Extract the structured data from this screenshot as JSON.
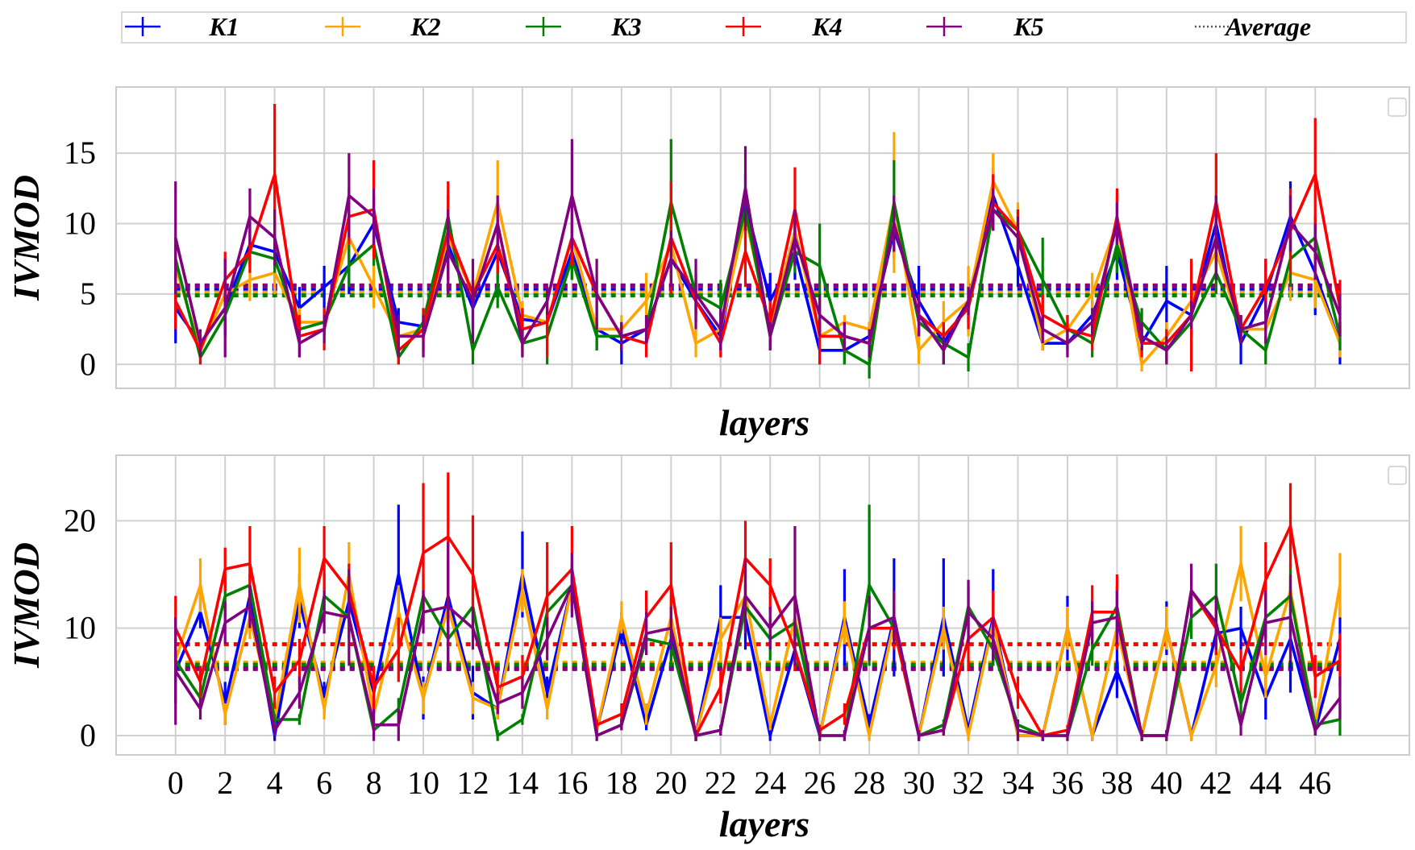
{
  "legend": {
    "items": [
      {
        "label": "K1",
        "color": "#0000ff",
        "style": "errorbar"
      },
      {
        "label": "K2",
        "color": "#ffa500",
        "style": "errorbar"
      },
      {
        "label": "K3",
        "color": "#008000",
        "style": "errorbar"
      },
      {
        "label": "K4",
        "color": "#ff0000",
        "style": "errorbar"
      },
      {
        "label": "K5",
        "color": "#800080",
        "style": "errorbar"
      },
      {
        "label": "Average",
        "color": "#555555",
        "style": "dotted"
      }
    ]
  },
  "chart_data": [
    {
      "type": "line",
      "panel": "top",
      "xlabel": "layers",
      "ylabel": "IVMOD",
      "ylim": [
        -1.7,
        19.7
      ],
      "yticks": [
        0,
        5,
        10,
        15
      ],
      "xlim": [
        -2.4,
        49.8
      ],
      "xticks": [
        0,
        2,
        4,
        6,
        8,
        10,
        12,
        14,
        16,
        18,
        20,
        22,
        24,
        26,
        28,
        30,
        32,
        34,
        36,
        38,
        40,
        42,
        44,
        46
      ],
      "show_xtick_labels": false,
      "grid": true,
      "series": [
        {
          "name": "K1",
          "color": "#0000ff",
          "average": 5.3,
          "values": [
            4,
            1.5,
            4,
            8.5,
            8,
            4,
            5.5,
            7,
            10,
            3,
            2.7,
            8.5,
            4,
            8,
            3.2,
            3,
            8,
            2.5,
            1.5,
            2.5,
            7.5,
            4.5,
            2,
            11.5,
            4.5,
            8,
            1,
            1,
            2,
            9.5,
            4.5,
            1.5,
            4.5,
            12,
            7,
            1.5,
            1.5,
            3.5,
            8,
            1.5,
            4.5,
            3.5,
            10,
            1.5,
            5,
            10.5,
            6.5,
            1.5
          ],
          "errors": [
            2.5,
            0.5,
            2,
            1.5,
            2,
            1.5,
            1.5,
            2,
            2,
            1,
            0.8,
            2.5,
            1.5,
            2,
            1,
            1,
            2,
            1.5,
            1.5,
            1,
            2,
            1.5,
            1,
            2,
            2,
            2,
            1,
            1,
            1,
            2,
            2.5,
            0.5,
            1.5,
            2,
            1.5,
            0.5,
            0.5,
            1,
            2,
            0.5,
            2.5,
            1.5,
            2,
            1.5,
            2.5,
            2.5,
            3,
            1.5
          ]
        },
        {
          "name": "K2",
          "color": "#ffa500",
          "average": 5.1,
          "values": [
            7,
            1,
            5,
            6,
            6.5,
            3,
            3,
            9,
            5.5,
            2,
            2.5,
            9,
            5,
            11.5,
            3.5,
            3,
            9,
            2.5,
            2.5,
            4.5,
            8.5,
            1.5,
            2.5,
            10.5,
            2.5,
            9.5,
            2,
            3,
            2.5,
            11.5,
            1,
            3,
            4.5,
            13,
            9.5,
            1.5,
            2.5,
            5,
            10,
            0,
            2,
            4.5,
            8,
            2.5,
            2.5,
            6.5,
            6,
            1.5
          ],
          "errors": [
            1.5,
            0.5,
            1,
            1.5,
            1.5,
            1,
            1,
            1.5,
            1.5,
            1,
            0.8,
            2,
            1,
            3,
            1,
            1,
            1.5,
            1,
            1,
            2,
            2,
            1,
            1,
            2,
            1,
            2,
            1,
            0.5,
            0.5,
            5,
            1,
            1.5,
            2.5,
            2,
            2,
            0.5,
            0.5,
            1.5,
            2,
            0.5,
            1,
            1,
            2,
            1,
            1,
            2,
            2,
            1
          ]
        },
        {
          "name": "K3",
          "color": "#008000",
          "average": 4.9,
          "values": [
            7.5,
            0.5,
            3.5,
            8,
            7.5,
            2.5,
            3,
            7,
            8.5,
            0.5,
            3,
            10.5,
            1,
            5.5,
            1.5,
            2,
            7.5,
            2,
            2,
            2.5,
            11.5,
            5,
            4,
            11,
            2,
            8,
            7,
            1,
            0,
            11.5,
            3,
            1.5,
            0.5,
            11,
            9.5,
            6,
            2.5,
            1.5,
            8.5,
            3,
            1,
            3,
            6.5,
            2.5,
            1,
            7.5,
            9,
            2
          ],
          "errors": [
            1.5,
            0.5,
            1,
            1,
            1,
            1,
            1,
            1.5,
            1.5,
            0.5,
            1,
            1.5,
            1,
            1.5,
            1,
            2,
            1.5,
            1,
            1,
            1,
            4.5,
            1.5,
            2,
            1.5,
            1,
            1.5,
            3,
            1,
            1,
            3,
            1,
            1.5,
            1,
            1.5,
            1.5,
            3,
            1,
            1,
            2,
            1,
            1,
            1,
            1.5,
            1,
            1,
            2,
            1.5,
            1
          ]
        },
        {
          "name": "K4",
          "color": "#ff0000",
          "average": 5.6,
          "values": [
            4.5,
            1,
            6,
            8,
            13.5,
            2,
            2.5,
            10.5,
            11,
            1,
            2.5,
            9.5,
            5,
            8.5,
            2.5,
            3,
            9,
            5,
            2,
            1.5,
            9,
            4.5,
            1.5,
            8,
            3,
            11,
            2,
            2,
            1.5,
            10,
            3.5,
            2,
            4,
            11.5,
            9.5,
            3.5,
            2.5,
            2,
            10.5,
            1.5,
            1.5,
            3.5,
            11.5,
            2.5,
            5.5,
            9.5,
            13.5,
            4
          ],
          "errors": [
            2,
            1,
            2,
            1.5,
            5,
            1.5,
            1.5,
            2,
            3.5,
            1,
            1.5,
            3.5,
            1,
            2,
            1.5,
            2.5,
            2,
            1,
            1,
            1,
            4,
            1,
            1,
            2.5,
            1.5,
            3,
            2,
            1,
            1,
            2,
            1.5,
            1,
            1.5,
            2,
            1.5,
            1.5,
            1,
            1,
            2,
            1,
            1,
            4,
            3.5,
            1,
            2,
            3,
            4,
            2
          ]
        },
        {
          "name": "K5",
          "color": "#800080",
          "average": 5.6,
          "values": [
            9,
            1.5,
            4,
            10.5,
            9,
            1.5,
            2.5,
            12,
            10.5,
            2,
            2,
            8,
            4.5,
            10,
            1.5,
            4.5,
            12,
            5,
            2,
            2.5,
            7.5,
            5,
            2.5,
            12.5,
            2,
            9,
            3.5,
            2,
            1.5,
            10,
            3.5,
            1,
            4.5,
            11,
            9,
            2.5,
            1.5,
            3,
            10,
            2,
            1,
            3.5,
            9,
            2.5,
            3,
            10,
            8,
            3.5
          ],
          "errors": [
            4,
            1,
            3.5,
            2,
            2,
            1,
            1,
            3,
            2,
            1.5,
            1.5,
            3,
            3,
            2,
            1,
            1,
            4,
            2.5,
            1,
            1,
            2,
            2.5,
            1.5,
            3,
            1,
            2,
            1.5,
            1,
            1,
            2,
            1.5,
            1,
            1,
            1.5,
            1.5,
            1,
            1,
            1,
            1.5,
            1,
            1,
            1,
            3,
            1,
            1.5,
            2,
            2,
            1.5
          ]
        }
      ]
    },
    {
      "type": "line",
      "panel": "bottom",
      "xlabel": "layers",
      "ylabel": "IVMOD",
      "ylim": [
        -1.8,
        26.1
      ],
      "yticks": [
        0,
        10,
        20
      ],
      "xlim": [
        -2.4,
        49.8
      ],
      "xticks": [
        0,
        2,
        4,
        6,
        8,
        10,
        12,
        14,
        16,
        18,
        20,
        22,
        24,
        26,
        28,
        30,
        32,
        34,
        36,
        38,
        40,
        42,
        44,
        46
      ],
      "show_xtick_labels": true,
      "grid": true,
      "series": [
        {
          "name": "K1",
          "color": "#0000ff",
          "average": 6.3,
          "values": [
            6,
            11.5,
            3,
            13,
            0,
            12.5,
            3.5,
            12.5,
            4,
            15,
            3.5,
            13,
            4,
            2.5,
            15,
            4,
            14,
            0.5,
            10,
            1,
            9,
            0,
            11,
            11,
            0,
            8,
            0,
            11,
            1,
            11,
            0,
            11,
            0.5,
            11,
            0,
            0,
            10,
            0,
            6,
            0,
            10,
            0,
            9.5,
            10,
            3.5,
            9,
            0.5,
            9
          ],
          "errors": [
            3,
            1.5,
            2,
            2,
            0.5,
            2.5,
            1.5,
            2,
            2,
            6.5,
            2,
            3.5,
            2.5,
            1,
            4,
            1.5,
            2,
            0.5,
            1.5,
            0.5,
            2,
            0.5,
            3,
            3,
            0.5,
            2,
            0.5,
            4.5,
            1,
            5.5,
            0.5,
            5.5,
            0.5,
            4.5,
            0.5,
            0.5,
            3,
            0.5,
            2.5,
            0.5,
            2.5,
            0.5,
            2,
            2,
            2,
            5,
            0.5,
            3
          ]
        },
        {
          "name": "K2",
          "color": "#ffa500",
          "average": 6.8,
          "values": [
            7,
            14,
            2,
            11,
            1.5,
            14,
            2.5,
            15,
            2,
            11.5,
            3.5,
            12,
            3.5,
            2.5,
            13.5,
            2.5,
            14,
            0.5,
            11,
            2,
            11,
            0,
            9,
            13,
            1,
            11,
            0,
            10.5,
            0,
            10.5,
            0,
            10,
            0,
            10.5,
            0,
            0,
            10,
            0,
            10,
            0,
            10,
            0,
            6.5,
            16,
            5.5,
            13.5,
            1,
            14
          ],
          "errors": [
            1.5,
            2.5,
            1,
            2,
            1,
            3.5,
            1,
            3,
            1,
            2.5,
            1.5,
            2,
            1.5,
            1,
            2,
            1,
            2,
            0.5,
            1.5,
            1,
            2,
            0.5,
            2,
            2,
            0.5,
            2,
            0.5,
            2,
            0.5,
            2,
            0.5,
            2,
            0.5,
            2,
            0.5,
            0.5,
            2,
            0.5,
            2,
            0.5,
            2,
            0.5,
            2,
            3.5,
            2,
            2,
            0.5,
            3
          ]
        },
        {
          "name": "K3",
          "color": "#008000",
          "average": 6.6,
          "values": [
            7,
            3.5,
            13,
            14,
            1.5,
            1.5,
            13,
            11,
            0.5,
            2.5,
            13,
            9,
            12,
            0,
            1.5,
            11.5,
            14,
            0,
            1,
            9,
            8.5,
            0,
            0.5,
            12,
            9,
            10.5,
            0,
            0,
            14,
            10,
            0,
            1,
            12,
            8,
            1,
            0,
            0,
            8,
            12,
            0,
            0,
            11,
            13,
            3,
            11,
            13,
            1,
            1.5
          ],
          "errors": [
            2,
            1,
            2,
            2,
            0.5,
            0.5,
            2,
            2,
            0.5,
            1,
            2,
            2,
            2,
            0.5,
            0.5,
            2,
            2,
            0.5,
            0.5,
            1.5,
            2,
            0.5,
            0.5,
            2,
            2,
            2,
            0.5,
            0.5,
            7.5,
            1.5,
            0.5,
            0.5,
            2,
            1.5,
            0.5,
            0.5,
            0.5,
            1.5,
            2,
            0.5,
            0.5,
            2,
            3,
            1,
            2,
            3,
            0.5,
            1.5
          ]
        },
        {
          "name": "K4",
          "color": "#ff0000",
          "average": 8.5,
          "values": [
            10,
            5,
            15.5,
            16,
            4,
            7,
            16.5,
            13.5,
            4.5,
            8,
            17,
            18.5,
            15,
            4.5,
            5.5,
            13,
            15.5,
            1,
            2,
            11,
            14,
            0,
            4.5,
            16.5,
            14,
            8,
            0.5,
            2,
            10,
            10,
            0,
            0.5,
            9,
            11,
            4,
            0,
            0.5,
            11.5,
            11.5,
            0,
            0,
            13.5,
            10,
            6,
            14.5,
            19.5,
            5.5,
            7
          ],
          "errors": [
            3,
            1.5,
            2,
            3.5,
            1.5,
            2,
            3,
            2.5,
            2,
            3,
            6.5,
            6,
            5.5,
            1.5,
            2,
            5,
            4,
            0.5,
            1,
            2.5,
            4,
            0.5,
            1.5,
            3.5,
            2.5,
            2,
            0.5,
            1,
            3,
            2,
            0.5,
            0.5,
            3,
            2.5,
            1.5,
            0.5,
            0.5,
            2.5,
            3.5,
            0.5,
            0.5,
            2,
            2.5,
            2,
            3.5,
            4,
            2,
            2.5
          ]
        },
        {
          "name": "K5",
          "color": "#800080",
          "average": 6.2,
          "values": [
            6,
            2.5,
            10.5,
            12,
            0.5,
            4,
            11.5,
            11,
            1,
            1,
            11.5,
            12,
            10,
            3,
            4,
            9,
            14,
            0,
            1,
            9.5,
            10,
            0,
            0.5,
            13,
            10,
            13,
            0,
            0,
            10,
            11,
            0,
            0.5,
            11.5,
            9,
            0.5,
            0,
            0,
            10.5,
            11,
            0,
            0,
            13.5,
            10.5,
            1,
            10.5,
            11,
            0.5,
            3.5
          ],
          "errors": [
            5,
            1,
            2,
            2,
            0.5,
            1.5,
            2,
            4.5,
            1.5,
            1.5,
            2,
            6,
            2,
            1,
            1.5,
            2,
            3,
            0.5,
            0.5,
            2,
            2,
            0.5,
            0.5,
            3.5,
            2,
            6.5,
            0.5,
            0.5,
            3,
            2.5,
            0.5,
            0.5,
            3,
            2,
            1,
            0.5,
            0.5,
            2,
            2.5,
            0.5,
            0.5,
            2.5,
            2.5,
            1,
            3,
            4,
            0.5,
            2
          ]
        }
      ]
    }
  ]
}
